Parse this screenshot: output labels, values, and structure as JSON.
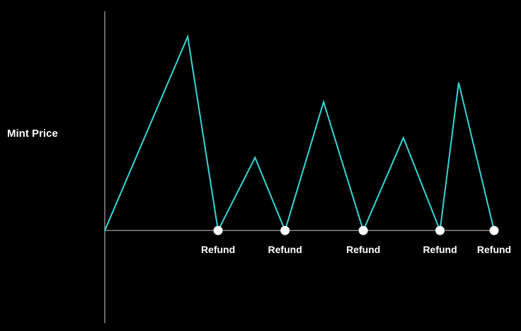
{
  "chart_data": {
    "type": "line",
    "title": "",
    "ylabel": "Mint Price",
    "xlabel": "",
    "grid": false,
    "xlim": [
      0,
      10
    ],
    "ylim": [
      -2.2,
      5.2
    ],
    "series": [
      {
        "color": "#35d6d6",
        "x": [
          0,
          2.13,
          2.91,
          3.86,
          4.63,
          5.62,
          6.64,
          7.67,
          8.61,
          9.09
        ],
        "y": [
          0,
          4.6,
          0,
          1.73,
          0,
          3.05,
          0,
          2.2,
          0,
          3.51
        ]
      }
    ],
    "refund_markers": {
      "color": "#ffffff",
      "x": [
        2.91,
        4.63,
        6.64,
        8.61,
        10
      ],
      "y": [
        0,
        0,
        0,
        0,
        0
      ],
      "labels": [
        "Refund",
        "Refund",
        "Refund",
        "Refund",
        "Refund"
      ]
    },
    "end_segment": {
      "x": [
        9.09,
        10
      ],
      "y": [
        3.51,
        0
      ]
    },
    "axis_color": "#888888"
  }
}
